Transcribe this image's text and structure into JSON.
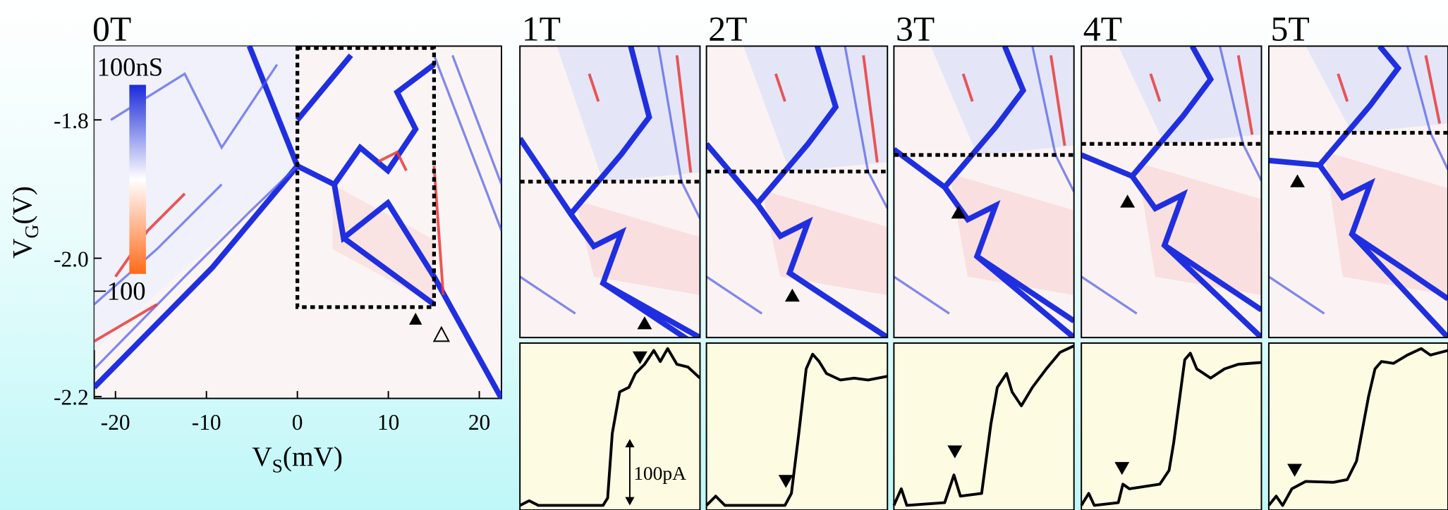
{
  "main_panel": {
    "label": "0T",
    "x_axis": {
      "symbol": "V",
      "subscript": "S",
      "unit": "(mV)",
      "ticks": [
        "-20",
        "-10",
        "0",
        "10",
        "20"
      ]
    },
    "y_axis": {
      "symbol": "V",
      "subscript": "G",
      "unit": "(V)",
      "ticks": [
        "-1.8",
        "-2.0",
        "-2.2"
      ]
    },
    "colorbar": {
      "top_label": "100nS",
      "bottom_label": "−100"
    }
  },
  "field_panels": [
    {
      "label": "1T"
    },
    {
      "label": "2T"
    },
    {
      "label": "3T"
    },
    {
      "label": "4T"
    },
    {
      "label": "5T"
    }
  ],
  "scale_bar": {
    "label": "100pA"
  }
}
